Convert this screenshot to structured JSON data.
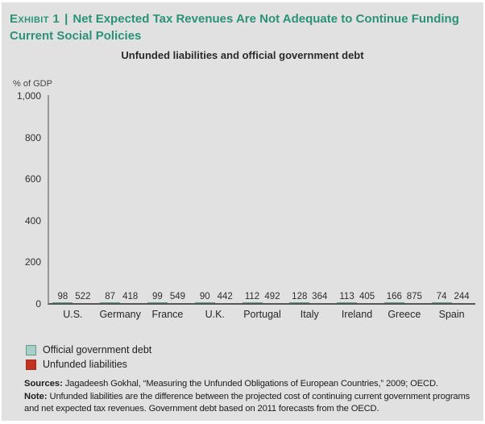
{
  "header": {
    "exhibit_label": "Exhibit 1",
    "separator": "|",
    "title": "Net Expected Tax Revenues Are Not Adequate to Continue Funding Current Social Policies"
  },
  "chart_data": {
    "type": "bar",
    "title": "Unfunded liabilities and official government debt",
    "y_axis_label": "% of GDP",
    "ylim": [
      0,
      1000
    ],
    "yticks": [
      {
        "value": 0,
        "label": "0"
      },
      {
        "value": 200,
        "label": "200"
      },
      {
        "value": 400,
        "label": "400"
      },
      {
        "value": 600,
        "label": "600"
      },
      {
        "value": 800,
        "label": "800"
      },
      {
        "value": 1000,
        "label": "1,000"
      }
    ],
    "categories": [
      "U.S.",
      "Germany",
      "France",
      "U.K.",
      "Portugal",
      "Italy",
      "Ireland",
      "Greece",
      "Spain"
    ],
    "series": [
      {
        "name": "Official government debt",
        "key": "official",
        "color": "#aacfc7",
        "border_color": "#619c90",
        "values": [
          98,
          87,
          99,
          90,
          112,
          128,
          113,
          166,
          74
        ]
      },
      {
        "name": "Unfunded liabilities",
        "key": "unfunded",
        "color": "#c23220",
        "border_color": "#a52a17",
        "values": [
          522,
          418,
          549,
          442,
          492,
          364,
          405,
          875,
          244
        ]
      }
    ],
    "grid": false,
    "legend_position": "bottom-left"
  },
  "legend": {
    "items": [
      {
        "label": "Official government debt",
        "color": "#aacfc7",
        "border_color": "#619c90"
      },
      {
        "label": "Unfunded liabilities",
        "color": "#c23220",
        "border_color": "#a52a17"
      }
    ]
  },
  "footer": {
    "sources_label": "Sources:",
    "sources_text": " Jagadeesh Gokhal, “Measuring the Unfunded Obligations of European Countries,” 2009; OECD.",
    "note_label": "Note:",
    "note_text": " Unfunded liabilities are the difference between the projected cost of continuing current government programs and net expected tax revenues. Government debt based on 2011 forecasts from the OECD."
  },
  "colors": {
    "accent_teal": "#2b9277",
    "panel_background": "#e0e1e0",
    "bar_official": "#aacfc7",
    "bar_unfunded": "#c23220",
    "text_dark": "#262626"
  }
}
